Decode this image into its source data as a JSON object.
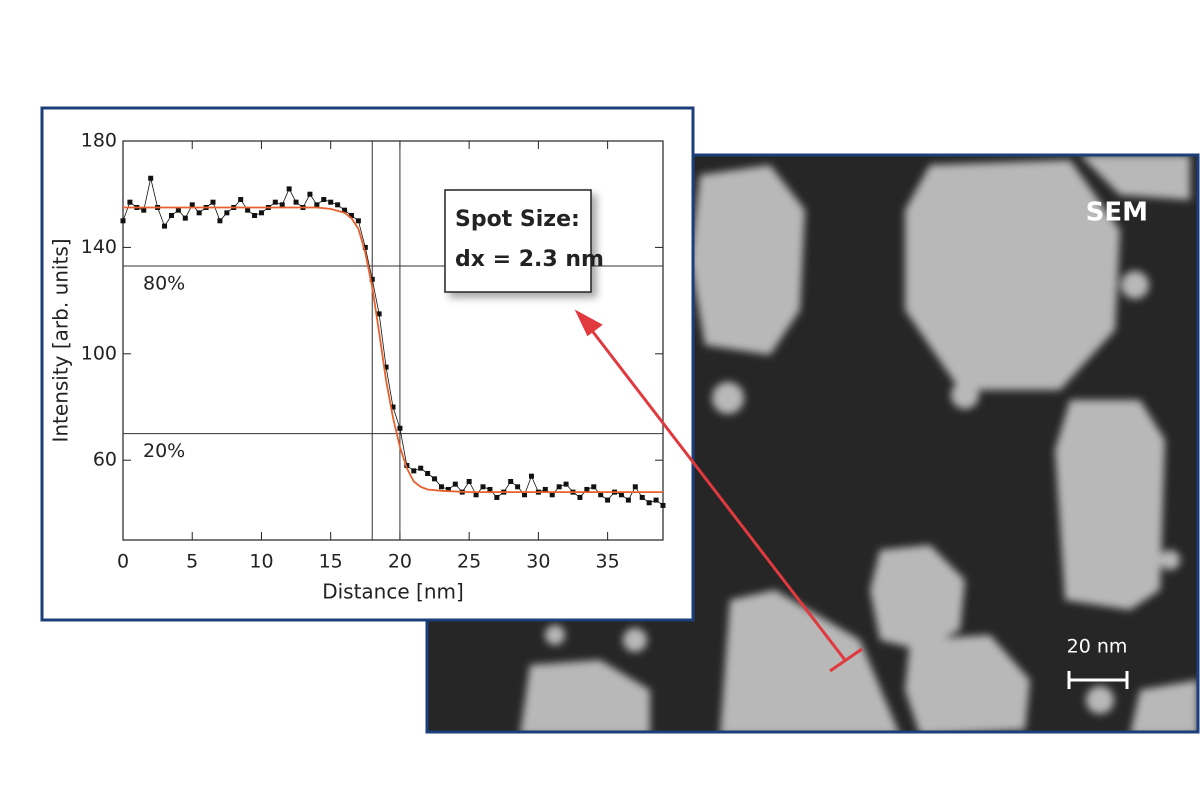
{
  "chart_data": {
    "type": "line",
    "xlabel": "Distance [nm]",
    "ylabel": "Intensity [arb. units]",
    "xlim": [
      0,
      39
    ],
    "ylim": [
      30,
      180
    ],
    "xticks": [
      0,
      5,
      10,
      15,
      20,
      25,
      30,
      35
    ],
    "yticks": [
      60,
      100,
      140,
      180
    ],
    "series": [
      {
        "color": "#111111",
        "marker": "square",
        "x": [
          0,
          0.5,
          1,
          1.5,
          2,
          2.5,
          3,
          3.5,
          4,
          4.5,
          5,
          5.5,
          6,
          6.5,
          7,
          7.5,
          8,
          8.5,
          9,
          9.5,
          10,
          10.5,
          11,
          11.5,
          12,
          12.5,
          13,
          13.5,
          14,
          14.5,
          15,
          15.5,
          16,
          16.5,
          17,
          17.5,
          18,
          18.5,
          19,
          19.5,
          20,
          20.5,
          21,
          21.5,
          22,
          22.5,
          23,
          23.5,
          24,
          24.5,
          25,
          25.5,
          26,
          26.5,
          27,
          27.5,
          28,
          28.5,
          29,
          29.5,
          30,
          30.5,
          31,
          31.5,
          32,
          32.5,
          33,
          33.5,
          34,
          34.5,
          35,
          35.5,
          36,
          36.5,
          37,
          37.5,
          38,
          38.5,
          39
        ],
        "values": [
          150,
          157,
          155,
          154,
          166,
          155,
          148,
          152,
          154,
          151,
          156,
          153,
          155,
          157,
          150,
          153,
          155,
          158,
          154,
          152,
          153,
          155,
          157,
          156,
          162,
          157,
          155,
          160,
          156,
          158,
          157,
          156,
          154,
          152,
          150,
          140,
          128,
          115,
          95,
          80,
          72,
          58,
          56,
          57,
          55,
          53,
          50,
          49,
          51,
          48,
          52,
          47,
          50,
          49,
          46,
          48,
          52,
          50,
          47,
          54,
          48,
          49,
          47,
          50,
          51,
          48,
          46,
          49,
          50,
          47,
          45,
          48,
          47,
          45,
          50,
          46,
          44,
          45,
          43
        ]
      },
      {
        "color": "#e8602c",
        "x": [
          0,
          5,
          10,
          14,
          15,
          16,
          16.5,
          17,
          17.5,
          18,
          18.5,
          19,
          19.5,
          20,
          20.5,
          21,
          21.5,
          22,
          23,
          25,
          30,
          39
        ],
        "values": [
          155,
          155,
          155,
          155,
          154.5,
          153,
          151,
          147,
          138,
          125,
          108,
          90,
          76,
          65,
          57,
          52,
          50,
          49,
          48.5,
          48,
          48,
          48
        ]
      }
    ],
    "reference_lines": {
      "x": [
        18,
        20
      ],
      "y": [
        {
          "value": 133,
          "label": "80%"
        },
        {
          "value": 70,
          "label": "20%"
        }
      ]
    },
    "annotation": [
      "Spot Size:",
      "dx = 2.3 nm"
    ]
  },
  "image": {
    "label": "SEM",
    "scale_bar": "20 nm"
  }
}
